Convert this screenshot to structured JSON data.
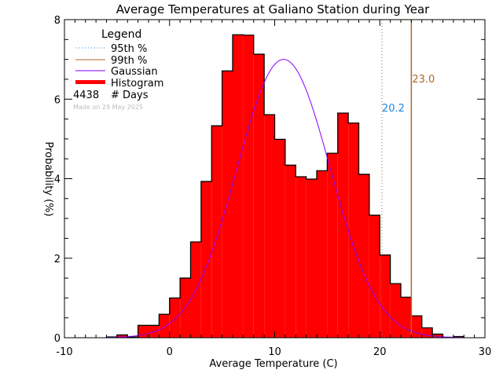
{
  "chart_data": {
    "type": "bar",
    "title": "Average Temperatures at Galiano Station during Year",
    "xlabel": "Average Temperature (C)",
    "ylabel": "Probability (%)",
    "xlim": [
      -10,
      30
    ],
    "ylim": [
      0,
      8
    ],
    "xticks": [
      "-10",
      "0",
      "10",
      "20",
      "30"
    ],
    "yticks": [
      "0",
      "2",
      "4",
      "6",
      "8"
    ],
    "bin_edges_start": -6,
    "bin_width": 1,
    "values": [
      0.02,
      0.07,
      0.02,
      0.31,
      0.31,
      0.59,
      1.0,
      1.5,
      2.41,
      3.93,
      5.33,
      6.71,
      7.62,
      7.61,
      7.13,
      5.61,
      4.99,
      4.34,
      4.05,
      3.99,
      4.2,
      4.64,
      5.65,
      5.4,
      4.11,
      3.08,
      2.08,
      1.36,
      1.02,
      0.55,
      0.25,
      0.09,
      0.01,
      0.03
    ],
    "gaussian": {
      "mean": 10.85,
      "sigma": 4.45,
      "peak": 7.0,
      "range": [
        -6,
        28
      ]
    },
    "percentile_95": {
      "value": 20.2,
      "label": "20.2"
    },
    "percentile_99": {
      "value": 23.0,
      "label": "23.0"
    },
    "legend": {
      "title": "Legend",
      "placement": "top-left",
      "items": [
        "95th %",
        "99th %",
        "Gaussian",
        "Histogram"
      ],
      "count": "4438",
      "count_label": "# Days",
      "made_on": "Made on 29 May 2025"
    },
    "colors": {
      "histogram": "#ff0000",
      "gaussian": "#8800ff",
      "p95": "#1a8ae6",
      "p99": "#b0662a",
      "made_on": "#bbbbbb"
    }
  }
}
